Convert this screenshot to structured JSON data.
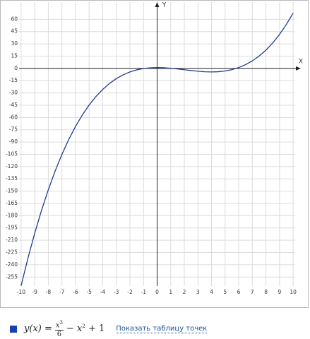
{
  "chart_data": {
    "type": "line",
    "x_label": "X",
    "y_label": "Y",
    "x": [
      -10,
      -9.5,
      -9,
      -8.5,
      -8,
      -7.5,
      -7,
      -6.5,
      -6,
      -5.5,
      -5,
      -4.5,
      -4,
      -3.5,
      -3,
      -2.5,
      -2,
      -1.5,
      -1,
      -0.5,
      0,
      0.5,
      1,
      1.5,
      2,
      2.5,
      3,
      3.5,
      4,
      4.5,
      5,
      5.5,
      6,
      6.5,
      7,
      7.5,
      8,
      8.5,
      9,
      9.5,
      10
    ],
    "series": [
      {
        "name": "y(x)",
        "color": "#1f3a93",
        "values": [
          -265.67,
          -232.15,
          -201.5,
          -173.6,
          -148.33,
          -125.56,
          -105.17,
          -87.02,
          -71,
          -56.98,
          -44.83,
          -34.44,
          -25.67,
          -18.4,
          -12.5,
          -7.85,
          -4.33,
          -1.81,
          -0.17,
          0.73,
          1,
          0.77,
          0.17,
          -0.69,
          -1.67,
          -2.65,
          -3.5,
          -4.1,
          -4.33,
          -4.06,
          -3.17,
          -1.52,
          1,
          4.52,
          9.17,
          15.06,
          22.33,
          31.1,
          41.5,
          53.65,
          67.67
        ]
      }
    ],
    "xlim": [
      -10.15,
      10.15
    ],
    "ylim": [
      -266,
      81
    ],
    "xticks": [
      -10,
      -9,
      -8,
      -7,
      -6,
      -5,
      -4,
      -3,
      -2,
      -1,
      0,
      1,
      2,
      3,
      4,
      5,
      6,
      7,
      8,
      9,
      10
    ],
    "yticks": [
      60,
      45,
      30,
      15,
      0,
      -15,
      -30,
      -45,
      -60,
      -75,
      -90,
      -105,
      -120,
      -135,
      -150,
      -165,
      -180,
      -195,
      -210,
      -225,
      -240,
      -255
    ],
    "grid": true,
    "legend": {
      "lhs": "y(x) =",
      "num": "x",
      "num_exp": "3",
      "den": "6",
      "mid": "− x",
      "mid_exp": "2",
      "tail": "+ 1",
      "link": "Показать таблицу точек"
    }
  }
}
